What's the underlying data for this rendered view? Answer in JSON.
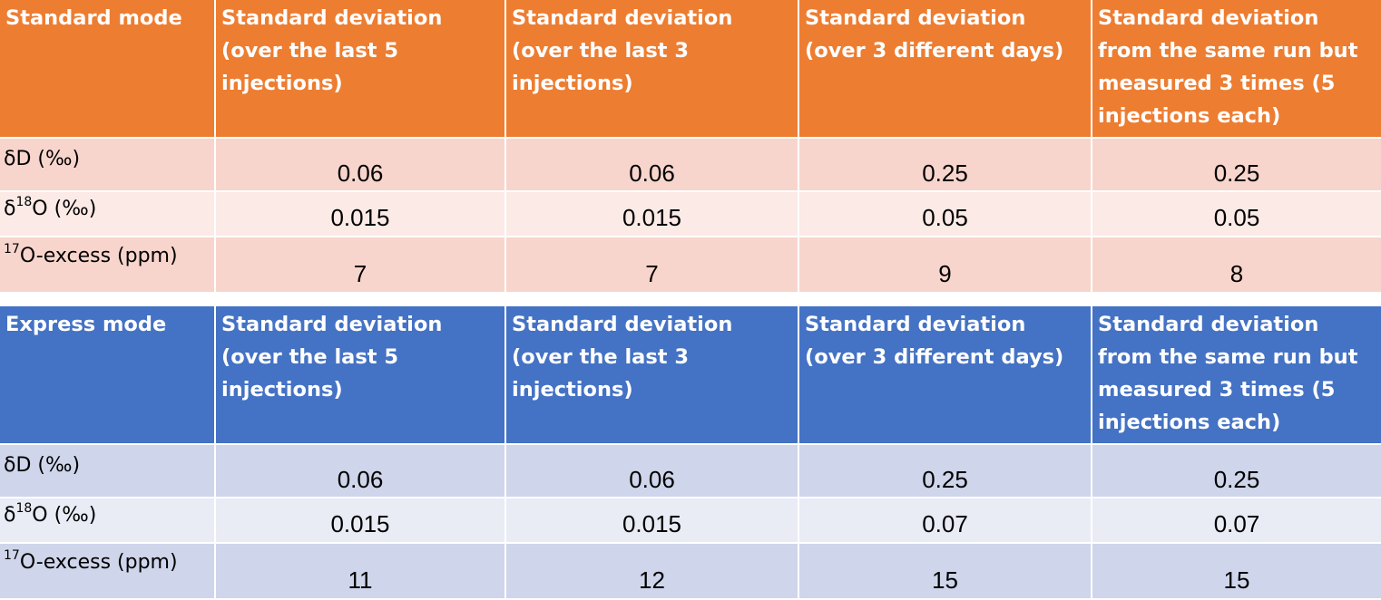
{
  "colors": {
    "standard_header": "#ed7d31",
    "standard_row_dark": "#f8d5cc",
    "standard_row_light": "#fbeae6",
    "express_header": "#4472c4",
    "express_row_dark": "#cfd5ea",
    "express_row_light": "#e9ebf5"
  },
  "columns": [
    "Standard deviation (over the last 5 injections)",
    "Standard deviation (over the last 3 injections)",
    "Standard deviation (over 3 different days)",
    "Standard deviation from the same run but measured 3 times (5 injections each)"
  ],
  "row_labels": [
    {
      "pre": "δD (‰)",
      "sup": "",
      "post": ""
    },
    {
      "pre": "δ",
      "sup": "18",
      "post": "O (‰)"
    },
    {
      "pre": "",
      "sup": "17",
      "post": "O-excess (ppm)"
    }
  ],
  "standard": {
    "mode": "Standard mode",
    "rows": [
      [
        "0.06",
        "0.06",
        "0.25",
        "0.25"
      ],
      [
        "0.015",
        "0.015",
        "0.05",
        "0.05"
      ],
      [
        "7",
        "7",
        "9",
        "8"
      ]
    ]
  },
  "express": {
    "mode": "Express mode",
    "rows": [
      [
        "0.06",
        "0.06",
        "0.25",
        "0.25"
      ],
      [
        "0.015",
        "0.015",
        "0.07",
        "0.07"
      ],
      [
        "11",
        "12",
        "15",
        "15"
      ]
    ]
  }
}
